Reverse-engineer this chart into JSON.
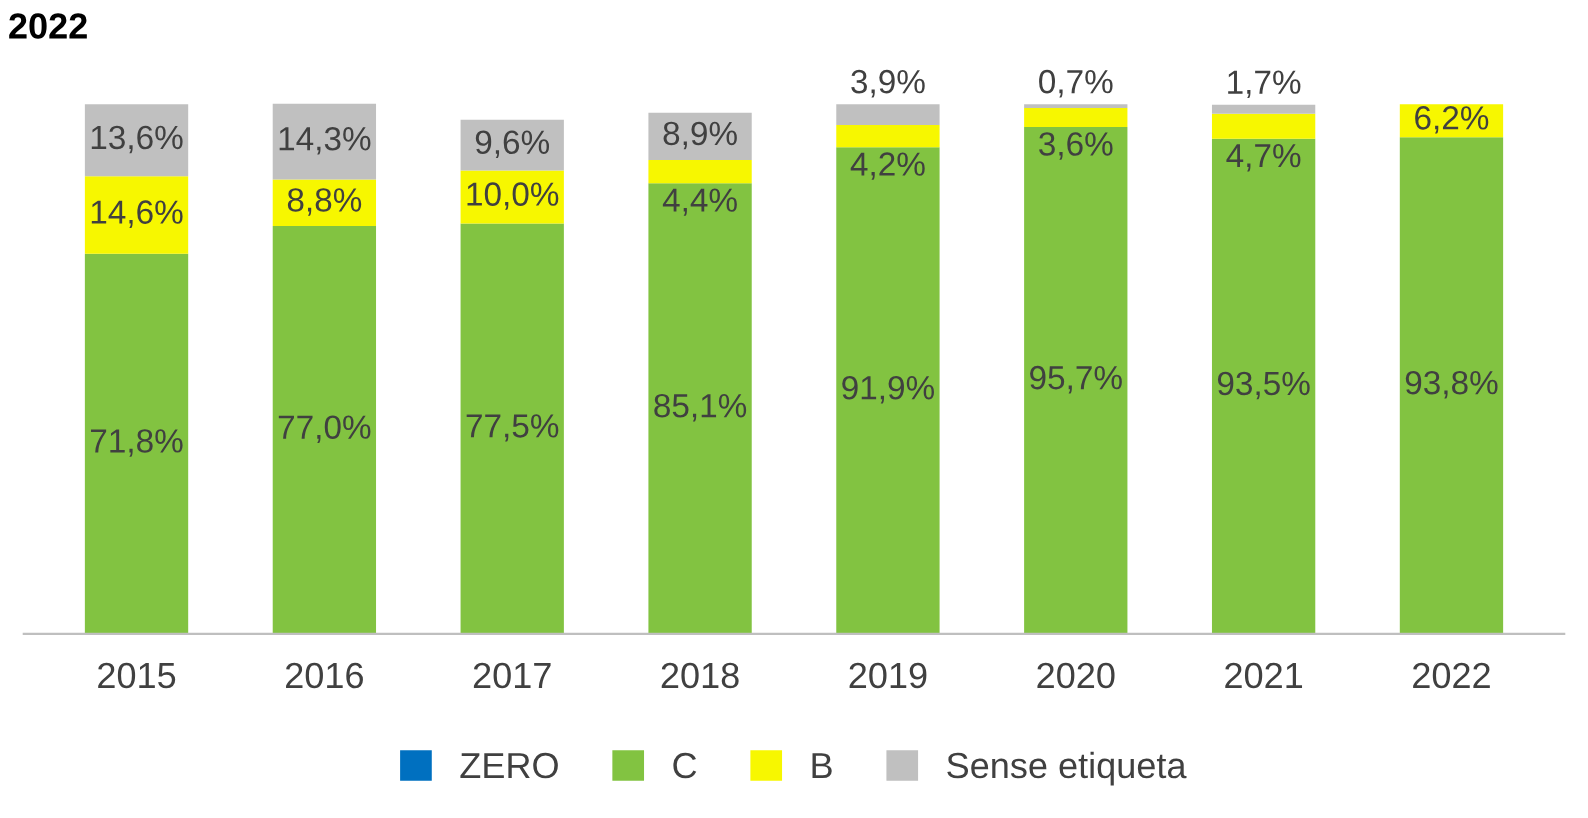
{
  "chart_data": {
    "type": "bar",
    "title": "2022",
    "stacked": true,
    "legend": "bottom",
    "grid": false,
    "categories": [
      "2015",
      "2016",
      "2017",
      "2018",
      "2019",
      "2020",
      "2021",
      "2022"
    ],
    "series": [
      {
        "name": "ZERO",
        "color": "#0070c0",
        "values": [
          0,
          0,
          0,
          0,
          0,
          0,
          0,
          0
        ],
        "value_labels": [
          null,
          null,
          null,
          null,
          null,
          null,
          null,
          null
        ]
      },
      {
        "name": "C",
        "color": "#82c341",
        "values": [
          71.8,
          77.0,
          77.5,
          85.1,
          91.9,
          95.7,
          93.5,
          93.8
        ],
        "value_labels": [
          "71,8%",
          "77,0%",
          "77,5%",
          "85,1%",
          "91,9%",
          "95,7%",
          "93,5%",
          "93,8%"
        ]
      },
      {
        "name": "B",
        "color": "#f7f700",
        "values": [
          14.6,
          8.8,
          10.0,
          4.4,
          4.2,
          3.6,
          4.7,
          6.2
        ],
        "value_labels": [
          "14,6%",
          "8,8%",
          "10,0%",
          "4,4%",
          "4,2%",
          "3,6%",
          "4,7%",
          "6,2%"
        ]
      },
      {
        "name": "Sense etiqueta",
        "color": "#c0c0c0",
        "values": [
          13.6,
          14.3,
          9.6,
          8.9,
          3.9,
          0.7,
          1.7,
          null
        ],
        "value_labels": [
          "13,6%",
          "14,3%",
          "9,6%",
          "8,9%",
          "3,9%",
          "0,7%",
          "1,7%",
          null
        ]
      }
    ]
  }
}
